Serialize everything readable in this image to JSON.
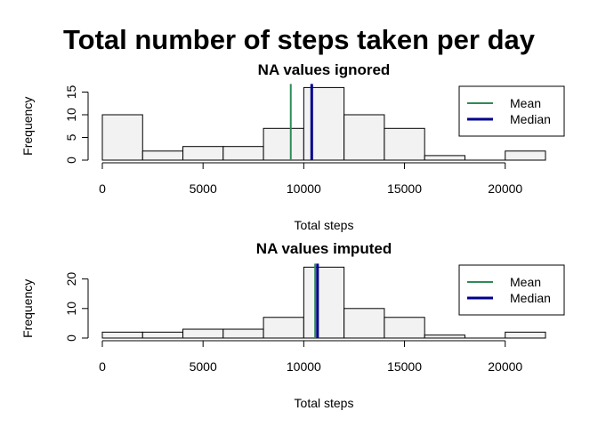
{
  "figure_title": "Total number of steps taken per day",
  "chart_data": [
    {
      "type": "bar",
      "title": "NA values ignored",
      "xlabel": "Total steps",
      "ylabel": "Frequency",
      "bin_edges": [
        0,
        2000,
        4000,
        6000,
        8000,
        10000,
        12000,
        14000,
        16000,
        18000,
        20000,
        22000
      ],
      "values": [
        10,
        2,
        3,
        3,
        7,
        16,
        10,
        7,
        1,
        0,
        2
      ],
      "xlim": [
        0,
        22000
      ],
      "ylim": [
        0,
        16
      ],
      "x_ticks": [
        0,
        5000,
        10000,
        15000,
        20000
      ],
      "x_tick_labels": [
        "0",
        "5000",
        "10000",
        "15000",
        "20000"
      ],
      "y_ticks": [
        0,
        5,
        10,
        15
      ],
      "y_tick_labels": [
        "0",
        "5",
        "10",
        "15"
      ],
      "bar_fill": "#f2f2f2",
      "mean": 9354,
      "median": 10395,
      "mean_color": "#2e8b57",
      "median_color": "#00008b",
      "legend": {
        "position": "top-right",
        "entries": [
          "Mean",
          "Median"
        ]
      }
    },
    {
      "type": "bar",
      "title": "NA values imputed",
      "xlabel": "Total steps",
      "ylabel": "Frequency",
      "bin_edges": [
        0,
        2000,
        4000,
        6000,
        8000,
        10000,
        12000,
        14000,
        16000,
        18000,
        20000,
        22000
      ],
      "values": [
        2,
        2,
        3,
        3,
        7,
        24,
        10,
        7,
        1,
        0,
        2
      ],
      "xlim": [
        0,
        22000
      ],
      "ylim": [
        0,
        24
      ],
      "x_ticks": [
        0,
        5000,
        10000,
        15000,
        20000
      ],
      "x_tick_labels": [
        "0",
        "5000",
        "10000",
        "15000",
        "20000"
      ],
      "y_ticks": [
        0,
        10,
        20
      ],
      "y_tick_labels": [
        "0",
        "10",
        "20"
      ],
      "bar_fill": "#f2f2f2",
      "mean": 10566,
      "median": 10682,
      "mean_color": "#2e8b57",
      "median_color": "#00008b",
      "legend": {
        "position": "top-right",
        "entries": [
          "Mean",
          "Median"
        ]
      }
    }
  ]
}
